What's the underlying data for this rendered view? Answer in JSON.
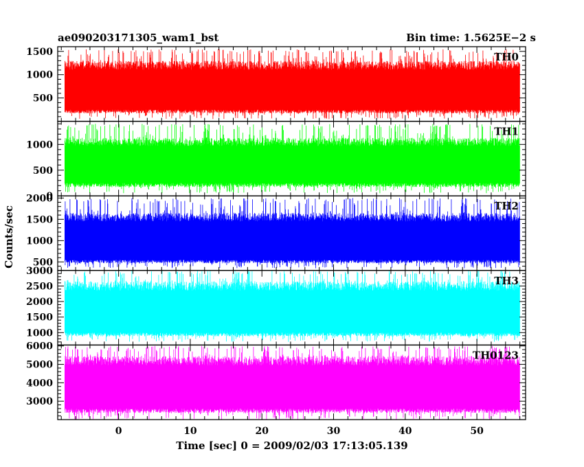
{
  "title": "ae090203171305_wam1_bst",
  "bin_time": "Bin time: 1.5625E−2 s",
  "xlabel": "Time [sec] 0 = 2009/02/03 17:13:05.139",
  "ylabel": "Counts/sec",
  "chart_data": {
    "type": "line",
    "x_range": [
      -8.5,
      56.8
    ],
    "data_x_range": [
      -7.5,
      56.0
    ],
    "x_ticks": [
      0,
      10,
      20,
      30,
      40,
      50
    ],
    "x_minor_step": 2,
    "grid": false,
    "panels": [
      {
        "name": "TH0",
        "color": "#ff0000",
        "ylim": [
          0,
          1600
        ],
        "y_ticks": [
          500,
          1000,
          1500
        ],
        "y_minor_step": 100,
        "typical_low": 250,
        "typical_high": 1200,
        "min": 50,
        "max": 1550
      },
      {
        "name": "TH1",
        "color": "#00ff00",
        "ylim": [
          0,
          1450
        ],
        "y_ticks": [
          0,
          500,
          1000
        ],
        "y_minor_step": 100,
        "typical_low": 250,
        "typical_high": 1050,
        "min": 50,
        "max": 1400
      },
      {
        "name": "TH2",
        "color": "#0000ff",
        "ylim": [
          300,
          2050
        ],
        "y_ticks": [
          500,
          1000,
          1500,
          2000
        ],
        "y_minor_step": 100,
        "typical_low": 550,
        "typical_high": 1550,
        "min": 350,
        "max": 2000
      },
      {
        "name": "TH3",
        "color": "#00ffff",
        "ylim": [
          600,
          3000
        ],
        "y_ticks": [
          1000,
          1500,
          2000,
          2500,
          3000
        ],
        "y_minor_step": 100,
        "typical_low": 1000,
        "typical_high": 2500,
        "min": 700,
        "max": 3000
      },
      {
        "name": "TH0123",
        "color": "#ff00ff",
        "ylim": [
          2000,
          6050
        ],
        "y_ticks": [
          3000,
          4000,
          5000,
          6000
        ],
        "y_minor_step": 200,
        "typical_low": 2600,
        "typical_high": 5200,
        "min": 2000,
        "max": 6000
      }
    ]
  }
}
